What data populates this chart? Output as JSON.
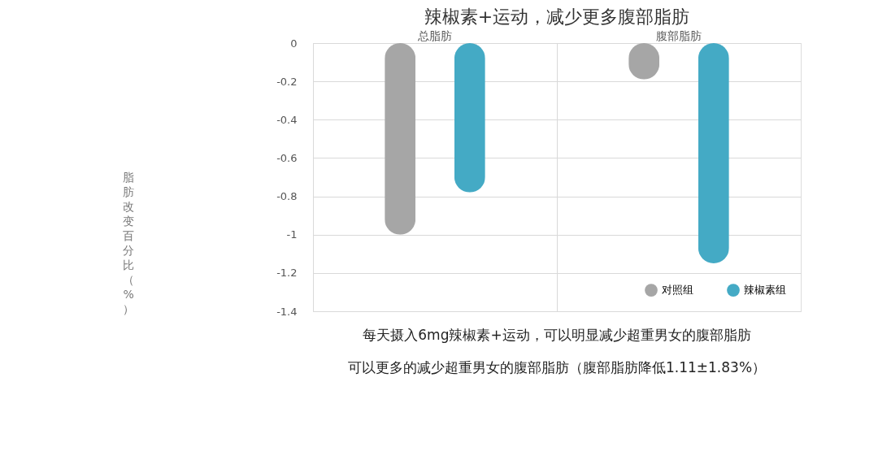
{
  "chart_data": {
    "type": "bar",
    "title": "辣椒素+运动，减少更多腹部脂肪",
    "ylabel": "脂肪改变百分比（%）",
    "categories": [
      "总脂肪",
      "腹部脂肪"
    ],
    "series": [
      {
        "name": "对照组",
        "color": "#a6a6a6",
        "values": [
          -1.0,
          -0.19
        ]
      },
      {
        "name": "辣椒素组",
        "color": "#44aac5",
        "values": [
          -0.78,
          -1.15
        ]
      }
    ],
    "ylim": [
      -1.4,
      0
    ],
    "yticks": [
      0,
      -0.2,
      -0.4,
      -0.6,
      -0.8,
      -1,
      -1.2,
      -1.4
    ],
    "grid": true,
    "legend": "bottom right",
    "annotations": [
      "每天摄入6mg辣椒素+运动，可以明显减少超重男女的腹部脂肪",
      "可以更多的减少超重男女的腹部脂肪（腹部脂肪降低1.11±1.83%）"
    ]
  }
}
